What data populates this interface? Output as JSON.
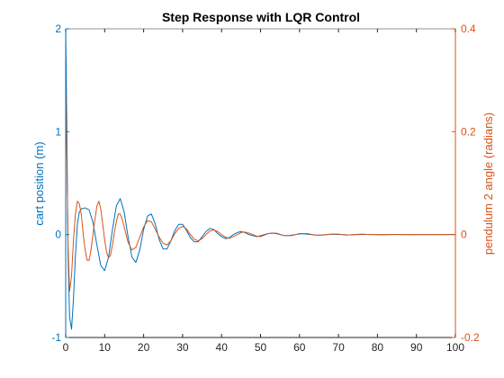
{
  "chart_data": {
    "type": "line",
    "title": "Step Response with LQR Control",
    "xlabel": "",
    "xlim": [
      0,
      100
    ],
    "x_ticks": [
      0,
      10,
      20,
      30,
      40,
      50,
      60,
      70,
      80,
      90,
      100
    ],
    "grid": false,
    "left_axis": {
      "label": "cart position (m)",
      "ylim": [
        -1,
        2
      ],
      "ticks": [
        -1,
        0,
        1,
        2
      ],
      "color": "#0072BD"
    },
    "right_axis": {
      "label": "pendulum 2 angle (radians)",
      "ylim": [
        -0.2,
        0.4
      ],
      "ticks": [
        -0.2,
        0,
        0.2,
        0.4
      ],
      "color": "#D95319"
    },
    "series": [
      {
        "axis": "left",
        "color": "#0072BD",
        "x": [
          0,
          0.3,
          0.6,
          1.0,
          1.5,
          2.0,
          2.5,
          3.0,
          3.5,
          4.0,
          5.0,
          6.0,
          7.0,
          8.0,
          9.0,
          10.0,
          11.0,
          12.0,
          13.0,
          14.0,
          15.0,
          16.0,
          17.0,
          18.0,
          19.0,
          20.0,
          21.0,
          22.0,
          23.0,
          24.0,
          25.0,
          26.0,
          27.0,
          28.0,
          29.0,
          30.0,
          31.0,
          32.0,
          33.0,
          34.0,
          35.0,
          36.0,
          37.0,
          38.0,
          39.0,
          40.0,
          41.0,
          42.0,
          43.0,
          44.0,
          45.0,
          46.0,
          47.0,
          48.0,
          49.0,
          50.0,
          51.0,
          52.0,
          53.0,
          54.0,
          55.0,
          56.0,
          57.0,
          58.0,
          59.0,
          60.0,
          61.0,
          62.0,
          63.0,
          64.0,
          65.0,
          66.0,
          67.0,
          68.0,
          69.0,
          70.0,
          71.0,
          72.0,
          73.0,
          74.0,
          75.0,
          76.0,
          77.0,
          78.0,
          79.0,
          80.0,
          81.0,
          82.0,
          83.0,
          84.0,
          85.0,
          86.0,
          87.0,
          88.0,
          89.0,
          90.0,
          91.0,
          92.0,
          93.0,
          94.0,
          95.0,
          96.0,
          97.0,
          98.0,
          99.0,
          100.0
        ],
        "y": [
          2.0,
          1.0,
          -0.2,
          -0.8,
          -0.92,
          -0.62,
          -0.2,
          0.1,
          0.22,
          0.25,
          0.26,
          0.24,
          0.12,
          -0.1,
          -0.3,
          -0.35,
          -0.22,
          0.05,
          0.28,
          0.35,
          0.22,
          -0.02,
          -0.22,
          -0.27,
          -0.15,
          0.05,
          0.18,
          0.2,
          0.1,
          -0.05,
          -0.14,
          -0.14,
          -0.06,
          0.04,
          0.1,
          0.1,
          0.04,
          -0.03,
          -0.07,
          -0.07,
          -0.02,
          0.03,
          0.06,
          0.05,
          0.01,
          -0.02,
          -0.04,
          -0.03,
          0.0,
          0.02,
          0.03,
          0.02,
          0.0,
          -0.01,
          -0.02,
          -0.01,
          0.0,
          0.01,
          0.015,
          0.01,
          0.0,
          -0.008,
          -0.01,
          -0.005,
          0.0,
          0.006,
          0.008,
          0.004,
          0.0,
          -0.004,
          -0.005,
          -0.003,
          0.0,
          0.003,
          0.004,
          0.002,
          0.0,
          -0.002,
          -0.003,
          -0.001,
          0.0,
          0.002,
          0.002,
          0.001,
          0.0,
          -0.001,
          -0.002,
          -0.001,
          0.0,
          0.001,
          0.001,
          0.0,
          0.0,
          -0.001,
          -0.001,
          0.0,
          0.0,
          0.001,
          0.0,
          0.0,
          0.0,
          0.0,
          0.0,
          0.0,
          0.0,
          0.0
        ]
      },
      {
        "axis": "right",
        "color": "#D95319",
        "x": [
          0,
          0.3,
          0.6,
          1.0,
          1.5,
          2.0,
          2.5,
          3.0,
          3.5,
          4.0,
          4.5,
          5.0,
          5.5,
          6.0,
          6.5,
          7.0,
          7.5,
          8.0,
          8.5,
          9.0,
          9.5,
          10.0,
          10.5,
          11.0,
          11.5,
          12.0,
          12.5,
          13.0,
          13.5,
          14.0,
          14.5,
          15.0,
          16.0,
          17.0,
          18.0,
          19.0,
          20.0,
          21.0,
          22.0,
          23.0,
          24.0,
          25.0,
          26.0,
          27.0,
          28.0,
          29.0,
          30.0,
          31.0,
          32.0,
          33.0,
          34.0,
          35.0,
          36.0,
          37.0,
          38.0,
          39.0,
          40.0,
          41.0,
          42.0,
          43.0,
          44.0,
          45.0,
          46.0,
          47.0,
          48.0,
          49.0,
          50.0,
          52.0,
          54.0,
          56.0,
          58.0,
          60.0,
          62.0,
          64.0,
          66.0,
          68.0,
          70.0,
          72.0,
          74.0,
          76.0,
          78.0,
          80.0,
          82.0,
          84.0,
          86.0,
          88.0,
          90.0,
          92.0,
          94.0,
          96.0,
          98.0,
          100.0
        ],
        "y": [
          0.3,
          0.15,
          -0.02,
          -0.11,
          -0.08,
          -0.01,
          0.04,
          0.065,
          0.06,
          0.04,
          0.0,
          -0.03,
          -0.05,
          -0.05,
          -0.03,
          0.0,
          0.03,
          0.055,
          0.065,
          0.05,
          0.02,
          -0.01,
          -0.035,
          -0.045,
          -0.04,
          -0.02,
          0.005,
          0.025,
          0.04,
          0.04,
          0.03,
          0.015,
          -0.015,
          -0.03,
          -0.025,
          -0.005,
          0.015,
          0.027,
          0.025,
          0.01,
          -0.005,
          -0.017,
          -0.02,
          -0.012,
          0.002,
          0.012,
          0.016,
          0.011,
          0.0,
          -0.009,
          -0.012,
          -0.008,
          0.0,
          0.007,
          0.009,
          0.006,
          0.0,
          -0.005,
          -0.007,
          -0.004,
          0.0,
          0.004,
          0.005,
          0.003,
          0.0,
          -0.003,
          -0.004,
          0.002,
          0.003,
          -0.002,
          -0.002,
          0.002,
          0.002,
          -0.001,
          -0.001,
          0.001,
          0.001,
          -0.001,
          0.0,
          0.001,
          0.0,
          0.0,
          0.0,
          0.0,
          0.0,
          0.0,
          0.0,
          0.0,
          0.0,
          0.0,
          0.0,
          0.0
        ]
      }
    ]
  }
}
